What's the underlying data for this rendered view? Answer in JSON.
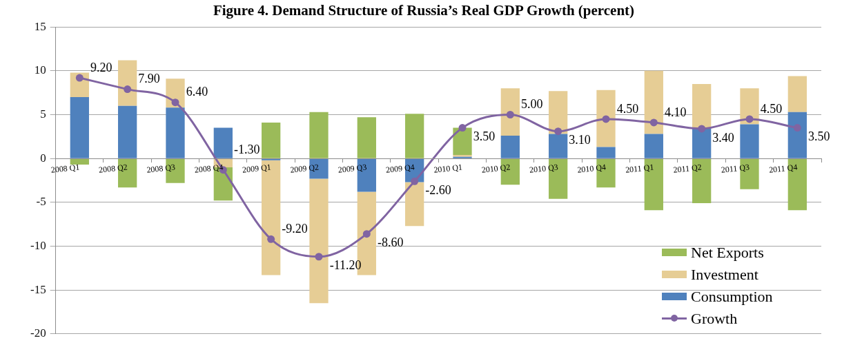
{
  "chart_data": {
    "type": "bar",
    "title": "Figure 4. Demand Structure of Russia’s Real GDP Growth (percent)",
    "categories": [
      "2008 Q1",
      "2008 Q2",
      "2008 Q3",
      "2008 Q4",
      "2009 Q1",
      "2009 Q2",
      "2009 Q3",
      "2009 Q4",
      "2010 Q1",
      "2010 Q2",
      "2010 Q3",
      "2010 Q4",
      "2011 Q1",
      "2011 Q2",
      "2011 Q3",
      "2011 Q4"
    ],
    "stacked": true,
    "ylim": [
      -20,
      15
    ],
    "yticks": [
      -20,
      -15,
      -10,
      -5,
      0,
      5,
      10,
      15
    ],
    "grid": "y",
    "legend": "bottom right",
    "series": [
      {
        "name": "Consumption",
        "color": "#4f81bd",
        "values": [
          7.0,
          6.0,
          5.8,
          3.5,
          -0.2,
          -2.3,
          -3.8,
          -2.7,
          0.2,
          2.6,
          2.8,
          1.3,
          2.8,
          3.4,
          3.9,
          5.3
        ]
      },
      {
        "name": "Investment",
        "color": "#e6cd95",
        "values": [
          2.8,
          5.2,
          3.3,
          -1.0,
          -13.1,
          -14.2,
          -9.5,
          -5.0,
          0.2,
          5.4,
          4.9,
          6.5,
          7.2,
          5.1,
          4.1,
          4.1
        ]
      },
      {
        "name": "Net Exports",
        "color": "#9bbb59",
        "values": [
          -0.7,
          -3.3,
          -2.8,
          -3.8,
          4.1,
          5.3,
          4.7,
          5.1,
          3.1,
          -3.0,
          -4.6,
          -3.3,
          -5.9,
          -5.1,
          -3.5,
          -5.9
        ]
      },
      {
        "name": "Growth",
        "type": "line",
        "color": "#8064a2",
        "marker": "circle",
        "line_style": "solid",
        "values": [
          9.2,
          7.9,
          6.4,
          -1.3,
          -9.2,
          -11.2,
          -8.6,
          -2.6,
          3.5,
          5.0,
          3.1,
          4.5,
          4.1,
          3.4,
          4.5,
          3.5
        ],
        "value_labels": [
          "9.20",
          "7.90",
          "6.40",
          "-1.30",
          "-9.20",
          "-11.20",
          "-8.60",
          "-2.60",
          "3.50",
          "5.00",
          "3.10",
          "4.50",
          "4.10",
          "3.40",
          "4.50",
          "3.50"
        ]
      }
    ]
  }
}
